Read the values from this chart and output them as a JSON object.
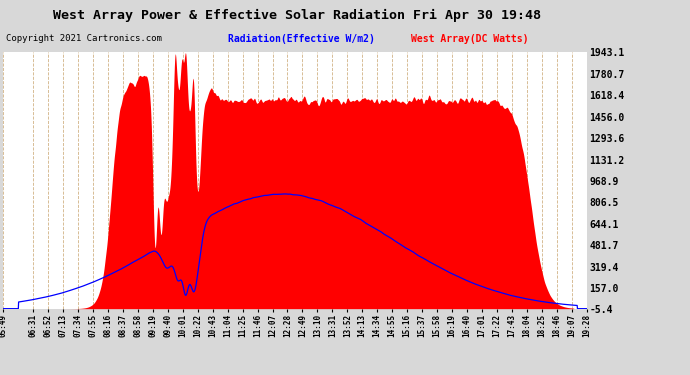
{
  "title": "West Array Power & Effective Solar Radiation Fri Apr 30 19:48",
  "copyright": "Copyright 2021 Cartronics.com",
  "legend_radiation": "Radiation(Effective W/m2)",
  "legend_west": "West Array(DC Watts)",
  "radiation_color": "blue",
  "west_color": "red",
  "background_color": "#d8d8d8",
  "plot_bg_color": "#ffffff",
  "grid_color": "#aaaaaa",
  "yticks": [
    1943.1,
    1780.7,
    1618.4,
    1456.0,
    1293.6,
    1131.2,
    968.9,
    806.5,
    644.1,
    481.7,
    319.4,
    157.0,
    -5.4
  ],
  "ymin": -5.4,
  "ymax": 1943.1,
  "time_labels": [
    "05:49",
    "06:31",
    "06:52",
    "07:13",
    "07:34",
    "07:55",
    "08:16",
    "08:37",
    "08:58",
    "09:19",
    "09:40",
    "10:01",
    "10:22",
    "10:43",
    "11:04",
    "11:25",
    "11:46",
    "12:07",
    "12:28",
    "12:49",
    "13:10",
    "13:31",
    "13:52",
    "14:13",
    "14:34",
    "14:55",
    "15:16",
    "15:37",
    "15:58",
    "16:19",
    "16:40",
    "17:01",
    "17:22",
    "17:43",
    "18:04",
    "18:25",
    "18:46",
    "19:07",
    "19:28"
  ]
}
